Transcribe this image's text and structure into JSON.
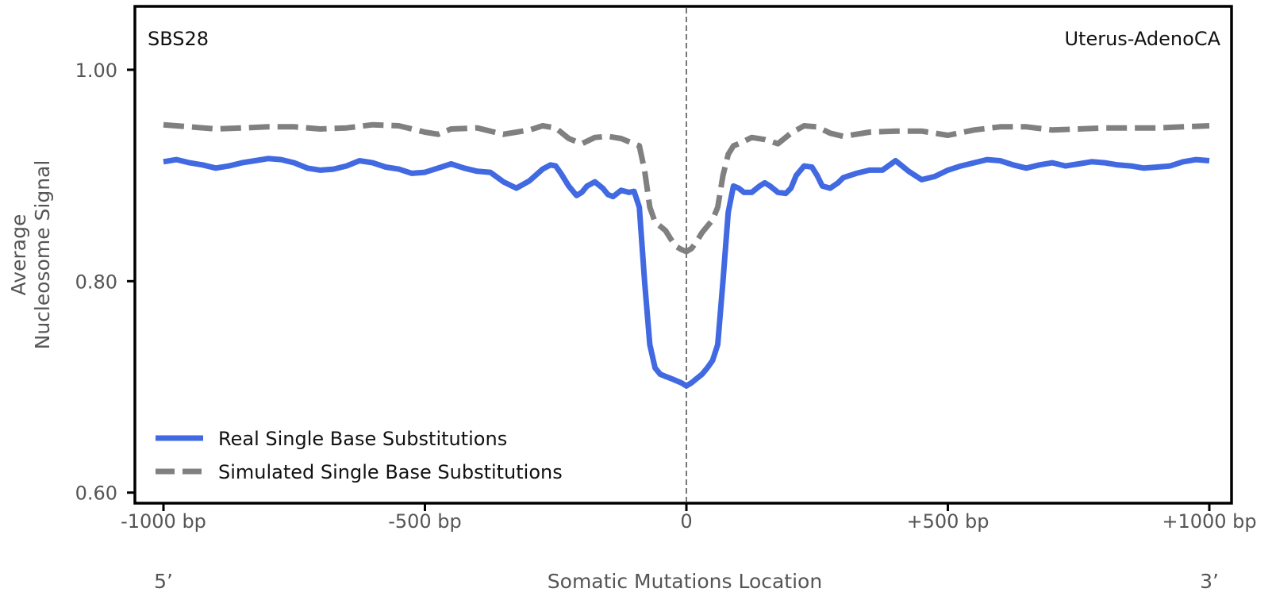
{
  "chart_data": {
    "type": "line",
    "signature_label": "SBS28",
    "tissue_label": "Uterus-AdenoCA",
    "ylabel_line1": "Average",
    "ylabel_line2": "Nucleosome Signal",
    "xlabel": "Somatic Mutations Location",
    "strand_left": "5’",
    "strand_right": "3’",
    "xlim": [
      -1000,
      1000
    ],
    "ylim": [
      0.59,
      1.06
    ],
    "yticks": [
      {
        "value": 1.0,
        "label": "1.00"
      },
      {
        "value": 0.8,
        "label": "0.80"
      },
      {
        "value": 0.6,
        "label": "0.60"
      }
    ],
    "xticks": [
      {
        "value": -1000,
        "label": "-1000 bp"
      },
      {
        "value": -500,
        "label": "-500 bp"
      },
      {
        "value": 0,
        "label": "0"
      },
      {
        "value": 500,
        "label": "+500 bp"
      },
      {
        "value": 1000,
        "label": "+1000 bp"
      }
    ],
    "reference_line_x": 0,
    "legend_position": "lower-left",
    "grid": false,
    "series": [
      {
        "name": "Real Single Base Substitutions",
        "color": "#4169e1",
        "style": "solid",
        "x": [
          -1000,
          -975,
          -950,
          -925,
          -900,
          -875,
          -850,
          -825,
          -800,
          -775,
          -750,
          -725,
          -700,
          -675,
          -650,
          -625,
          -600,
          -575,
          -550,
          -525,
          -500,
          -475,
          -450,
          -425,
          -400,
          -375,
          -350,
          -325,
          -300,
          -275,
          -260,
          -250,
          -240,
          -225,
          -210,
          -200,
          -190,
          -175,
          -160,
          -150,
          -140,
          -125,
          -110,
          -100,
          -90,
          -80,
          -70,
          -60,
          -50,
          -40,
          -30,
          -20,
          -10,
          0,
          10,
          20,
          30,
          40,
          50,
          60,
          70,
          80,
          90,
          100,
          110,
          125,
          140,
          150,
          160,
          175,
          190,
          200,
          210,
          225,
          240,
          250,
          260,
          275,
          290,
          300,
          325,
          350,
          375,
          400,
          425,
          450,
          475,
          500,
          525,
          550,
          575,
          600,
          625,
          650,
          675,
          700,
          725,
          750,
          775,
          800,
          825,
          850,
          875,
          900,
          925,
          950,
          975,
          1000
        ],
        "y": [
          0.913,
          0.915,
          0.912,
          0.91,
          0.907,
          0.909,
          0.912,
          0.914,
          0.916,
          0.915,
          0.912,
          0.907,
          0.905,
          0.906,
          0.909,
          0.914,
          0.912,
          0.908,
          0.906,
          0.902,
          0.903,
          0.907,
          0.911,
          0.907,
          0.904,
          0.903,
          0.894,
          0.888,
          0.895,
          0.906,
          0.91,
          0.909,
          0.902,
          0.89,
          0.881,
          0.884,
          0.89,
          0.894,
          0.888,
          0.882,
          0.88,
          0.886,
          0.884,
          0.885,
          0.87,
          0.8,
          0.74,
          0.718,
          0.712,
          0.71,
          0.708,
          0.706,
          0.704,
          0.701,
          0.704,
          0.708,
          0.712,
          0.718,
          0.725,
          0.74,
          0.8,
          0.865,
          0.89,
          0.888,
          0.884,
          0.884,
          0.89,
          0.893,
          0.89,
          0.884,
          0.883,
          0.888,
          0.9,
          0.909,
          0.908,
          0.9,
          0.89,
          0.888,
          0.893,
          0.898,
          0.902,
          0.905,
          0.905,
          0.914,
          0.904,
          0.896,
          0.899,
          0.905,
          0.909,
          0.912,
          0.915,
          0.914,
          0.91,
          0.907,
          0.91,
          0.912,
          0.909,
          0.911,
          0.913,
          0.912,
          0.91,
          0.909,
          0.907,
          0.908,
          0.909,
          0.913,
          0.915,
          0.914
        ]
      },
      {
        "name": "Simulated Single Base Substitutions",
        "color": "#808080",
        "style": "dashed",
        "x": [
          -1000,
          -950,
          -900,
          -850,
          -800,
          -750,
          -700,
          -650,
          -600,
          -550,
          -500,
          -475,
          -450,
          -400,
          -350,
          -300,
          -275,
          -250,
          -225,
          -200,
          -175,
          -150,
          -125,
          -100,
          -90,
          -80,
          -70,
          -60,
          -50,
          -40,
          -30,
          -20,
          -10,
          0,
          10,
          20,
          30,
          40,
          50,
          60,
          70,
          80,
          90,
          100,
          125,
          150,
          175,
          200,
          225,
          250,
          275,
          300,
          350,
          400,
          450,
          500,
          550,
          600,
          650,
          700,
          750,
          800,
          850,
          900,
          950,
          1000
        ],
        "y": [
          0.948,
          0.946,
          0.944,
          0.945,
          0.946,
          0.946,
          0.944,
          0.945,
          0.948,
          0.947,
          0.941,
          0.939,
          0.944,
          0.945,
          0.939,
          0.943,
          0.947,
          0.945,
          0.935,
          0.93,
          0.936,
          0.937,
          0.935,
          0.93,
          0.928,
          0.905,
          0.87,
          0.856,
          0.852,
          0.848,
          0.84,
          0.833,
          0.83,
          0.828,
          0.831,
          0.838,
          0.846,
          0.852,
          0.858,
          0.87,
          0.9,
          0.92,
          0.928,
          0.93,
          0.936,
          0.934,
          0.93,
          0.94,
          0.947,
          0.946,
          0.94,
          0.937,
          0.941,
          0.942,
          0.942,
          0.938,
          0.943,
          0.946,
          0.946,
          0.943,
          0.944,
          0.945,
          0.945,
          0.945,
          0.946,
          0.947
        ]
      }
    ]
  }
}
